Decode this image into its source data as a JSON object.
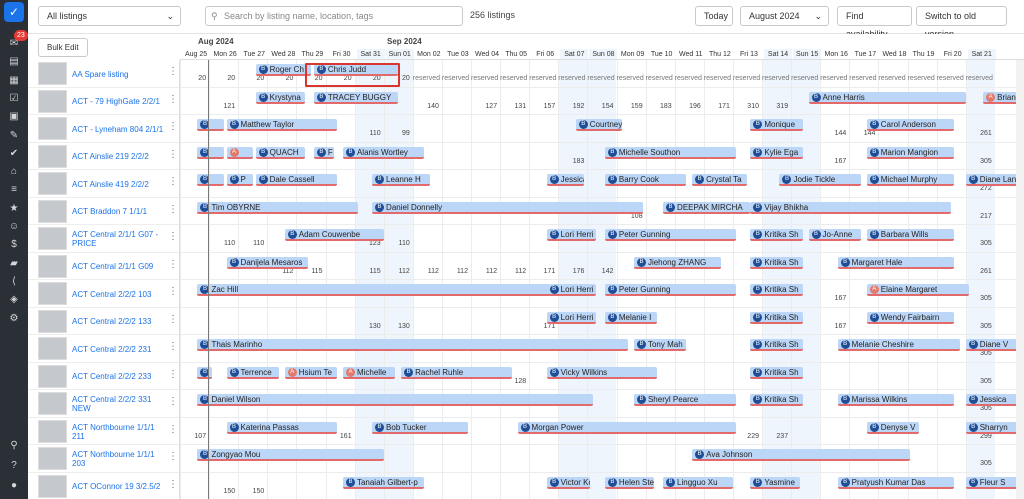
{
  "sidebar_icons": [
    "logo-check-icon",
    "chat-icon",
    "chart-icon",
    "calendar-icon",
    "clipboard-check-icon",
    "calendar-grid-icon",
    "brush-icon",
    "checkmark-icon",
    "home-icon",
    "list-icon",
    "star-icon",
    "users-icon",
    "dollar-icon",
    "briefcase-icon",
    "share-icon",
    "layers-icon",
    "gear-icon",
    "search-icon",
    "help-icon",
    "user-icon"
  ],
  "notification_count": "23",
  "toolbar": {
    "listing_filter": "All listings",
    "search_placeholder": "Search by listing name, location, tags",
    "listing_count": "256 listings",
    "today": "Today",
    "month": "August 2024",
    "find": "Find availability",
    "switch": "Switch to old version"
  },
  "bulk_edit": "Bulk Edit",
  "calendar": {
    "months": [
      {
        "label": "Aug 2024"
      },
      {
        "label": "Sep 2024"
      }
    ],
    "days": [
      {
        "l": "Aug 25",
        "we": false
      },
      {
        "l": "Mon 26",
        "we": false
      },
      {
        "l": "Tue 27",
        "we": false
      },
      {
        "l": "Wed 28",
        "we": false
      },
      {
        "l": "Thu 29",
        "we": false
      },
      {
        "l": "Fri 30",
        "we": false
      },
      {
        "l": "Sat 31",
        "we": true
      },
      {
        "l": "Sun 01",
        "we": true
      },
      {
        "l": "Mon 02",
        "we": false
      },
      {
        "l": "Tue 03",
        "we": false
      },
      {
        "l": "Wed 04",
        "we": false
      },
      {
        "l": "Thu 05",
        "we": false
      },
      {
        "l": "Fri 06",
        "we": false
      },
      {
        "l": "Sat 07",
        "we": true
      },
      {
        "l": "Sun 08",
        "we": true
      },
      {
        "l": "Mon 09",
        "we": false
      },
      {
        "l": "Tue 10",
        "we": false
      },
      {
        "l": "Wed 11",
        "we": false
      },
      {
        "l": "Thu 12",
        "we": false
      },
      {
        "l": "Fri 13",
        "we": false
      },
      {
        "l": "Sat 14",
        "we": true
      },
      {
        "l": "Sun 15",
        "we": true
      },
      {
        "l": "Mon 16",
        "we": false
      },
      {
        "l": "Tue 17",
        "we": false
      },
      {
        "l": "Wed 18",
        "we": false
      },
      {
        "l": "Thu 19",
        "we": false
      },
      {
        "l": "Fri 20",
        "we": false
      },
      {
        "l": "Sat 21",
        "we": true
      }
    ]
  },
  "listings": [
    {
      "name": "AA Spare listing",
      "prices": [
        "20",
        "20",
        "20",
        "20",
        "20",
        "20",
        "20",
        "20",
        "reserved",
        "reserved",
        "reserved",
        "reserved",
        "reserved",
        "reserved",
        "reserved",
        "reserved",
        "reserved",
        "reserved",
        "reserved",
        "reserved",
        "reserved",
        "reserved",
        "reserved",
        "reserved",
        "reserved",
        "reserved",
        "reserved",
        "reserved"
      ],
      "bookings": [
        {
          "guest": "Roger Ch",
          "s": 2.6,
          "d": 1.9,
          "t": "b"
        },
        {
          "guest": "Chris Judd",
          "s": 4.6,
          "d": 2.9,
          "t": "b"
        }
      ]
    },
    {
      "name": "ACT - 79 HighGate 2/2/1",
      "prices": [
        "",
        "121",
        "",
        "",
        "",
        "",
        "",
        "",
        "140",
        "",
        "127",
        "131",
        "157",
        "192",
        "154",
        "159",
        "183",
        "196",
        "171",
        "310",
        "319",
        "",
        "",
        "",
        "",
        "",
        "",
        ""
      ],
      "bookings": [
        {
          "guest": "Krystyna",
          "s": 2.6,
          "d": 1.7,
          "t": "b"
        },
        {
          "guest": "TRACEY BUGGY",
          "s": 4.6,
          "d": 2.9,
          "t": "b"
        },
        {
          "guest": "Anne Harris",
          "s": 21.6,
          "d": 5.4,
          "t": "b"
        },
        {
          "guest": "Brian H",
          "s": 27.6,
          "d": 1.4,
          "t": "r"
        }
      ]
    },
    {
      "name": "ACT - Lyneham 804 2/1/1",
      "prices": [
        "",
        "",
        "",
        "",
        "",
        "",
        "110",
        "99",
        "",
        "",
        "",
        "",
        "",
        "",
        "",
        "",
        "",
        "",
        "",
        "",
        "",
        "",
        "144",
        "144",
        "",
        "",
        "",
        "261"
      ],
      "bookings": [
        {
          "guest": "",
          "s": 0.6,
          "d": 0.9,
          "t": "b"
        },
        {
          "guest": "Matthew Taylor",
          "s": 1.6,
          "d": 3.8,
          "t": "b"
        },
        {
          "guest": "Courtney",
          "s": 13.6,
          "d": 1.6,
          "t": "b"
        },
        {
          "guest": "Monique",
          "s": 19.6,
          "d": 1.8,
          "t": "b"
        },
        {
          "guest": "Carol Anderson",
          "s": 23.6,
          "d": 3.0,
          "t": "b"
        }
      ]
    },
    {
      "name": "ACT Ainslie 219 2/2/2",
      "prices": [
        "",
        "",
        "",
        "",
        "",
        "",
        "",
        "",
        "",
        "",
        "",
        "",
        "",
        "183",
        "",
        "",
        "",
        "",
        "",
        "",
        "",
        "",
        "167",
        "",
        "",
        "",
        "",
        "305"
      ],
      "bookings": [
        {
          "guest": "",
          "s": 0.6,
          "d": 0.9,
          "t": "b"
        },
        {
          "guest": "",
          "s": 1.6,
          "d": 0.9,
          "t": "r"
        },
        {
          "guest": "QUACH",
          "s": 2.6,
          "d": 1.7,
          "t": "b"
        },
        {
          "guest": "F",
          "s": 4.6,
          "d": 0.7,
          "t": "b"
        },
        {
          "guest": "Alanis Wortley",
          "s": 5.6,
          "d": 2.8,
          "t": "b"
        },
        {
          "guest": "Michelle Southon",
          "s": 14.6,
          "d": 4.5,
          "t": "b"
        },
        {
          "guest": "Kylie Ega",
          "s": 19.6,
          "d": 1.8,
          "t": "b"
        },
        {
          "guest": "Marion Mangion",
          "s": 23.6,
          "d": 3.0,
          "t": "b"
        }
      ]
    },
    {
      "name": "ACT Ainslie 419 2/2/2",
      "prices": [
        "",
        "",
        "",
        "",
        "",
        "",
        "",
        "",
        "",
        "",
        "",
        "",
        "",
        "",
        "",
        "",
        "",
        "",
        "",
        "",
        "",
        "",
        "",
        "",
        "",
        "",
        "",
        "272"
      ],
      "bookings": [
        {
          "guest": "",
          "s": 0.6,
          "d": 0.9,
          "t": "b"
        },
        {
          "guest": "P",
          "s": 1.6,
          "d": 0.9,
          "t": "b"
        },
        {
          "guest": "Dale Cassell",
          "s": 2.6,
          "d": 2.8,
          "t": "b"
        },
        {
          "guest": "Leanne H",
          "s": 6.6,
          "d": 2.0,
          "t": "b"
        },
        {
          "guest": "Jessica C",
          "s": 12.6,
          "d": 1.3,
          "t": "b"
        },
        {
          "guest": "Barry Cook",
          "s": 14.6,
          "d": 2.8,
          "t": "b"
        },
        {
          "guest": "Crystal Ta",
          "s": 17.6,
          "d": 1.9,
          "t": "b"
        },
        {
          "guest": "Jodie Tickle",
          "s": 20.6,
          "d": 2.8,
          "t": "b"
        },
        {
          "guest": "Michael Murphy",
          "s": 23.6,
          "d": 3.0,
          "t": "b"
        },
        {
          "guest": "Diane Langford",
          "s": 27.0,
          "d": 2.0,
          "t": "b"
        }
      ]
    },
    {
      "name": "ACT Braddon 7 1/1/1",
      "prices": [
        "",
        "",
        "",
        "",
        "",
        "",
        "",
        "",
        "",
        "",
        "",
        "",
        "",
        "",
        "",
        "108",
        "",
        "",
        "",
        "",
        "",
        "",
        "",
        "",
        "",
        "",
        "",
        "217"
      ],
      "bookings": [
        {
          "guest": "Tim OBYRNE",
          "s": 0.6,
          "d": 5.5,
          "t": "b"
        },
        {
          "guest": "Daniel Donnelly",
          "s": 6.6,
          "d": 9.3,
          "t": "b"
        },
        {
          "guest": "DEEPAK MIRCHA",
          "s": 16.6,
          "d": 3.0,
          "t": "b"
        },
        {
          "guest": "Vijay Bhikha",
          "s": 19.6,
          "d": 6.9,
          "t": "b"
        }
      ]
    },
    {
      "name": "ACT Central 2/1/1 G07 - PRICE",
      "prices": [
        "",
        "110",
        "110",
        "",
        "",
        "",
        "123",
        "110",
        "",
        "",
        "",
        "",
        "",
        "",
        "",
        "",
        "",
        "",
        "",
        "",
        "",
        "",
        "",
        "",
        "",
        "",
        "",
        "305"
      ],
      "bookings": [
        {
          "guest": "Adam Couwenbe",
          "s": 3.6,
          "d": 3.4,
          "t": "b"
        },
        {
          "guest": "Lori Herri",
          "s": 12.6,
          "d": 1.7,
          "t": "b"
        },
        {
          "guest": "Peter Gunning",
          "s": 14.6,
          "d": 4.5,
          "t": "b"
        },
        {
          "guest": "Kritika Sh",
          "s": 19.6,
          "d": 1.8,
          "t": "b"
        },
        {
          "guest": "Jo-Anne",
          "s": 21.6,
          "d": 1.8,
          "t": "b"
        },
        {
          "guest": "Barbara Wills",
          "s": 23.6,
          "d": 3.0,
          "t": "b"
        }
      ]
    },
    {
      "name": "ACT Central 2/1/1 G09",
      "prices": [
        "",
        "",
        "",
        "112",
        "115",
        "",
        "115",
        "112",
        "112",
        "112",
        "112",
        "112",
        "171",
        "176",
        "142",
        "",
        "",
        "",
        "",
        "",
        "",
        "",
        "",
        "",
        "",
        "",
        "",
        "261"
      ],
      "bookings": [
        {
          "guest": "Danijela Mesaros",
          "s": 1.6,
          "d": 2.8,
          "t": "b"
        },
        {
          "guest": "Jiehong ZHANG",
          "s": 15.6,
          "d": 3.0,
          "t": "b"
        },
        {
          "guest": "Kritika Sh",
          "s": 19.6,
          "d": 1.8,
          "t": "b"
        },
        {
          "guest": "Margaret Hale",
          "s": 22.6,
          "d": 4.0,
          "t": "b"
        }
      ]
    },
    {
      "name": "ACT Central 2/2/2 103",
      "prices": [
        "",
        "",
        "",
        "",
        "",
        "",
        "",
        "",
        "",
        "",
        "",
        "",
        "",
        "",
        "",
        "",
        "",
        "",
        "",
        "",
        "",
        "",
        "167",
        "",
        "",
        "",
        "",
        "305"
      ],
      "bookings": [
        {
          "guest": "Zac Hill",
          "s": 0.6,
          "d": 12.1,
          "t": "b"
        },
        {
          "guest": "Lori Herri",
          "s": 12.6,
          "d": 1.7,
          "t": "b"
        },
        {
          "guest": "Peter Gunning",
          "s": 14.6,
          "d": 4.5,
          "t": "b"
        },
        {
          "guest": "Kritika Sh",
          "s": 19.6,
          "d": 1.8,
          "t": "b"
        },
        {
          "guest": "Elaine Margaret",
          "s": 23.6,
          "d": 3.5,
          "t": "r"
        }
      ]
    },
    {
      "name": "ACT Central 2/2/2 133",
      "prices": [
        "",
        "",
        "",
        "",
        "",
        "",
        "130",
        "130",
        "",
        "",
        "",
        "",
        "171",
        "",
        "",
        "",
        "",
        "",
        "",
        "",
        "",
        "",
        "167",
        "",
        "",
        "",
        "",
        "305"
      ],
      "bookings": [
        {
          "guest": "Lori Herri",
          "s": 12.6,
          "d": 1.7,
          "t": "b"
        },
        {
          "guest": "Melanie I",
          "s": 14.6,
          "d": 1.8,
          "t": "b"
        },
        {
          "guest": "Kritika Sh",
          "s": 19.6,
          "d": 1.8,
          "t": "b"
        },
        {
          "guest": "Wendy Fairbairn",
          "s": 23.6,
          "d": 3.0,
          "t": "b"
        }
      ]
    },
    {
      "name": "ACT Central 2/2/2 231",
      "prices": [
        "",
        "",
        "",
        "",
        "",
        "",
        "",
        "",
        "",
        "",
        "",
        "",
        "",
        "",
        "",
        "",
        "",
        "",
        "",
        "",
        "",
        "",
        "",
        "",
        "",
        "",
        "",
        "305"
      ],
      "bookings": [
        {
          "guest": "Thais Marinho",
          "s": 0.6,
          "d": 14.8,
          "t": "b"
        },
        {
          "guest": "Tony Mah",
          "s": 15.6,
          "d": 1.8,
          "t": "b"
        },
        {
          "guest": "Kritika Sh",
          "s": 19.6,
          "d": 1.8,
          "t": "b"
        },
        {
          "guest": "Melanie Cheshire",
          "s": 22.6,
          "d": 4.2,
          "t": "b"
        },
        {
          "guest": "Diane V",
          "s": 27.0,
          "d": 2.0,
          "t": "b"
        }
      ]
    },
    {
      "name": "ACT Central 2/2/2 233",
      "prices": [
        "",
        "",
        "",
        "",
        "",
        "",
        "",
        "",
        "",
        "",
        "",
        "128",
        "",
        "",
        "",
        "",
        "",
        "",
        "",
        "",
        "",
        "",
        "",
        "",
        "",
        "",
        "",
        "305"
      ],
      "bookings": [
        {
          "guest": "",
          "s": 0.6,
          "d": 0.5,
          "t": "b"
        },
        {
          "guest": "Terrence",
          "s": 1.6,
          "d": 1.8,
          "t": "b"
        },
        {
          "guest": "Hsium Te",
          "s": 3.6,
          "d": 1.8,
          "t": "r"
        },
        {
          "guest": "Michelle",
          "s": 5.6,
          "d": 1.8,
          "t": "r"
        },
        {
          "guest": "Rachel Ruhle",
          "s": 7.6,
          "d": 3.8,
          "t": "b"
        },
        {
          "guest": "Vicky Wilkins",
          "s": 12.6,
          "d": 3.8,
          "t": "b"
        },
        {
          "guest": "Kritika Sh",
          "s": 19.6,
          "d": 1.8,
          "t": "b"
        }
      ]
    },
    {
      "name": "ACT Central 2/2/2 331 NEW",
      "prices": [
        "",
        "",
        "",
        "",
        "",
        "",
        "",
        "",
        "",
        "",
        "",
        "",
        "",
        "",
        "",
        "",
        "",
        "",
        "",
        "",
        "",
        "",
        "",
        "",
        "",
        "",
        "",
        "305"
      ],
      "bookings": [
        {
          "guest": "Daniel Wilson",
          "s": 0.6,
          "d": 13.6,
          "t": "b"
        },
        {
          "guest": "Sheryl Pearce",
          "s": 15.6,
          "d": 3.5,
          "t": "b"
        },
        {
          "guest": "Kritika Sh",
          "s": 19.6,
          "d": 1.8,
          "t": "b"
        },
        {
          "guest": "Marissa Wilkins",
          "s": 22.6,
          "d": 4.0,
          "t": "b"
        },
        {
          "guest": "Jessica",
          "s": 27.0,
          "d": 2.0,
          "t": "b"
        }
      ]
    },
    {
      "name": "ACT Northbourne 1/1/1 211",
      "prices": [
        "107",
        "",
        "",
        "",
        "",
        "161",
        "",
        "",
        "",
        "",
        "",
        "",
        "",
        "",
        "",
        "",
        "",
        "",
        "",
        "229",
        "237",
        "",
        "",
        "",
        "",
        "",
        "",
        "299"
      ],
      "bookings": [
        {
          "guest": "Katerina Passas",
          "s": 1.6,
          "d": 3.8,
          "t": "b"
        },
        {
          "guest": "Bob Tucker",
          "s": 6.6,
          "d": 3.3,
          "t": "b"
        },
        {
          "guest": "Morgan Power",
          "s": 11.6,
          "d": 7.5,
          "t": "b"
        },
        {
          "guest": "Denyse V",
          "s": 23.6,
          "d": 1.8,
          "t": "b"
        },
        {
          "guest": "Sharryn",
          "s": 27.0,
          "d": 2.0,
          "t": "b"
        }
      ]
    },
    {
      "name": "ACT Northbourne 1/1/1 203",
      "prices": [
        "",
        "",
        "",
        "",
        "",
        "",
        "",
        "",
        "",
        "",
        "",
        "",
        "",
        "",
        "",
        "",
        "",
        "",
        "",
        "",
        "",
        "",
        "",
        "",
        "",
        "",
        "",
        "305"
      ],
      "bookings": [
        {
          "guest": "Zongyao Mou",
          "s": 0.6,
          "d": 6.4,
          "t": "b"
        },
        {
          "guest": "Ava Johnson",
          "s": 17.6,
          "d": 7.5,
          "t": "b"
        }
      ]
    },
    {
      "name": "ACT OConnor 19 3/2.5/2",
      "prices": [
        "",
        "150",
        "150",
        "",
        "",
        "",
        "",
        "",
        "",
        "",
        "",
        "",
        "",
        "",
        "",
        "",
        "",
        "",
        "",
        "",
        "",
        "",
        "",
        "",
        "",
        "",
        "",
        ""
      ],
      "bookings": [
        {
          "guest": "Tanaiah Gilbert-p",
          "s": 5.6,
          "d": 2.8,
          "t": "b"
        },
        {
          "guest": "Victor Ko",
          "s": 12.6,
          "d": 1.5,
          "t": "b"
        },
        {
          "guest": "Helen Ste",
          "s": 14.6,
          "d": 1.7,
          "t": "b"
        },
        {
          "guest": "Lingguo Xu",
          "s": 16.6,
          "d": 2.4,
          "t": "b"
        },
        {
          "guest": "Yasmine",
          "s": 19.6,
          "d": 1.7,
          "t": "b"
        },
        {
          "guest": "Pratyush Kumar Das",
          "s": 22.6,
          "d": 4.0,
          "t": "b"
        },
        {
          "guest": "Fleur S",
          "s": 27.0,
          "d": 2.0,
          "t": "b"
        }
      ]
    }
  ],
  "weekend_shade": "#eef5fc"
}
